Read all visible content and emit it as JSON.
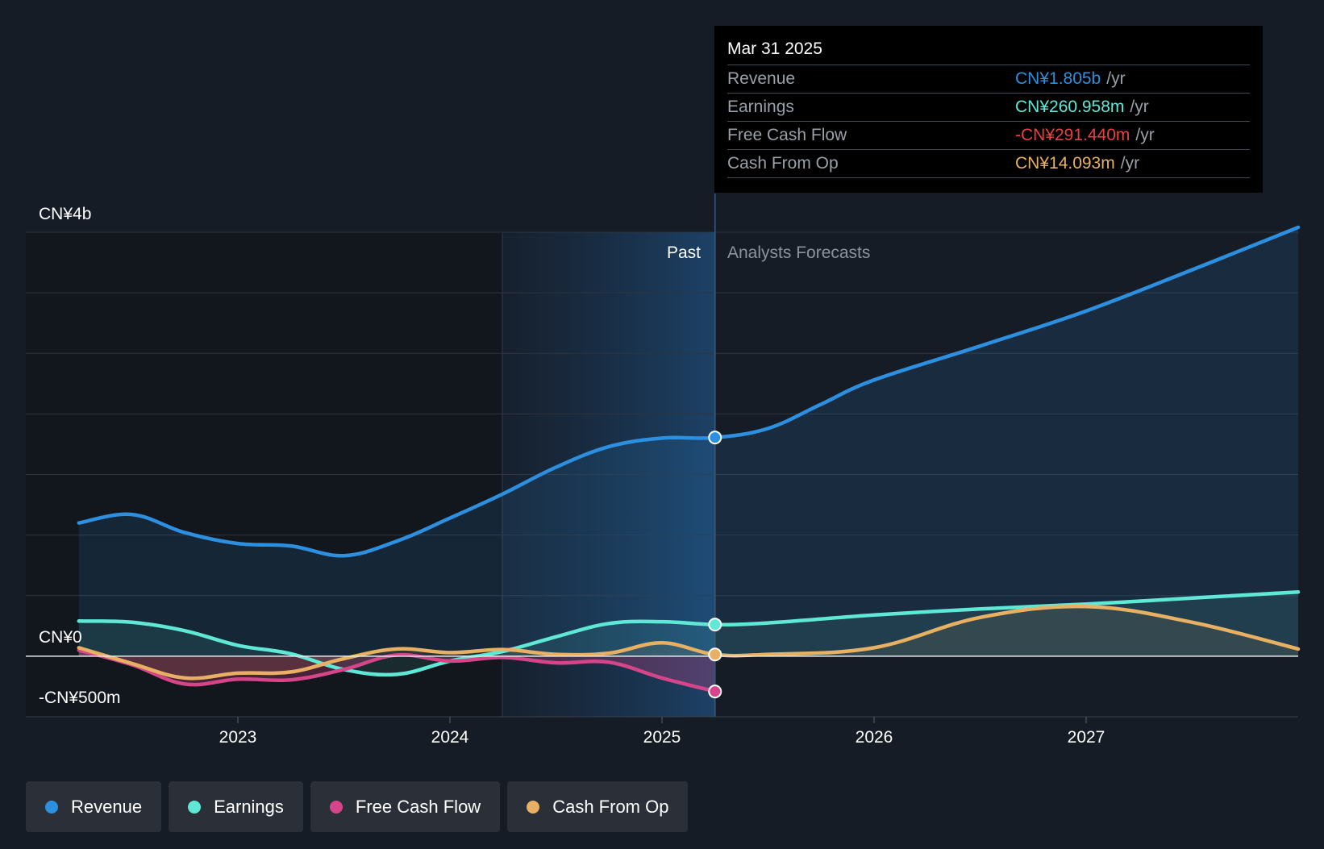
{
  "chart_data": {
    "type": "line",
    "currency": "CN¥",
    "y_axis": {
      "top_label": "CN¥4b",
      "zero_label": "CN¥0",
      "bottom_label": "-CN¥500m",
      "ylim": [
        -500,
        3500
      ],
      "unit": "m"
    },
    "x_axis": {
      "ticks": [
        "2023",
        "2024",
        "2025",
        "2026",
        "2027"
      ],
      "tick_values": [
        2023,
        2024,
        2025,
        2026,
        2027
      ],
      "xlim": [
        2022.0,
        2028.0
      ]
    },
    "regions": {
      "past_label": "Past",
      "forecast_label": "Analysts Forecasts",
      "divider_x": 2025.25,
      "shade_start_x": 2024.25
    },
    "series": [
      {
        "name": "Revenue",
        "color": "#2d8fe0",
        "x": [
          2022.25,
          2022.5,
          2022.75,
          2023.0,
          2023.25,
          2023.5,
          2023.75,
          2024.0,
          2024.25,
          2024.5,
          2024.75,
          2025.0,
          2025.25,
          2025.5,
          2025.75,
          2026.0,
          2026.5,
          2027.0,
          2027.5,
          2028.0
        ],
        "values": [
          1100,
          1170,
          1020,
          930,
          910,
          830,
          950,
          1140,
          1340,
          1560,
          1730,
          1800,
          1805,
          1880,
          2080,
          2280,
          2560,
          2850,
          3190,
          3540
        ]
      },
      {
        "name": "Earnings",
        "color": "#5ee8d5",
        "x": [
          2022.25,
          2022.5,
          2022.75,
          2023.0,
          2023.25,
          2023.5,
          2023.75,
          2024.0,
          2024.25,
          2024.5,
          2024.75,
          2025.0,
          2025.25,
          2025.5,
          2026.0,
          2026.5,
          2027.0,
          2027.5,
          2028.0
        ],
        "values": [
          290,
          280,
          210,
          90,
          20,
          -110,
          -150,
          -40,
          40,
          160,
          270,
          285,
          261,
          275,
          340,
          390,
          430,
          480,
          530
        ]
      },
      {
        "name": "Free Cash Flow",
        "color": "#d6458a",
        "x": [
          2022.25,
          2022.5,
          2022.75,
          2023.0,
          2023.25,
          2023.5,
          2023.75,
          2024.0,
          2024.25,
          2024.5,
          2024.75,
          2025.0,
          2025.25
        ],
        "values": [
          50,
          -70,
          -230,
          -190,
          -195,
          -110,
          10,
          -40,
          -10,
          -55,
          -50,
          -180,
          -291
        ]
      },
      {
        "name": "Cash From Op",
        "color": "#e8b062",
        "x": [
          2022.25,
          2022.5,
          2022.75,
          2023.0,
          2023.25,
          2023.5,
          2023.75,
          2024.0,
          2024.25,
          2024.5,
          2024.75,
          2025.0,
          2025.25,
          2025.5,
          2026.0,
          2026.5,
          2027.0,
          2027.5,
          2028.0
        ],
        "values": [
          70,
          -60,
          -180,
          -140,
          -130,
          -20,
          60,
          30,
          55,
          15,
          25,
          110,
          14,
          15,
          70,
          320,
          410,
          280,
          60
        ]
      }
    ],
    "highlight": {
      "x": 2025.25,
      "date": "Mar 31 2025"
    }
  },
  "tooltip": {
    "date": "Mar 31 2025",
    "rows": [
      {
        "label": "Revenue",
        "value": "CN¥1.805b",
        "unit": "/yr",
        "color": "#2d8fe0"
      },
      {
        "label": "Earnings",
        "value": "CN¥260.958m",
        "unit": "/yr",
        "color": "#5ee8d5"
      },
      {
        "label": "Free Cash Flow",
        "value": "-CN¥291.440m",
        "unit": "/yr",
        "color": "#e84040"
      },
      {
        "label": "Cash From Op",
        "value": "CN¥14.093m",
        "unit": "/yr",
        "color": "#e8b062"
      }
    ]
  },
  "legend": [
    {
      "label": "Revenue",
      "color": "#2d8fe0"
    },
    {
      "label": "Earnings",
      "color": "#5ee8d5"
    },
    {
      "label": "Free Cash Flow",
      "color": "#d6458a"
    },
    {
      "label": "Cash From Op",
      "color": "#e8b062"
    }
  ]
}
